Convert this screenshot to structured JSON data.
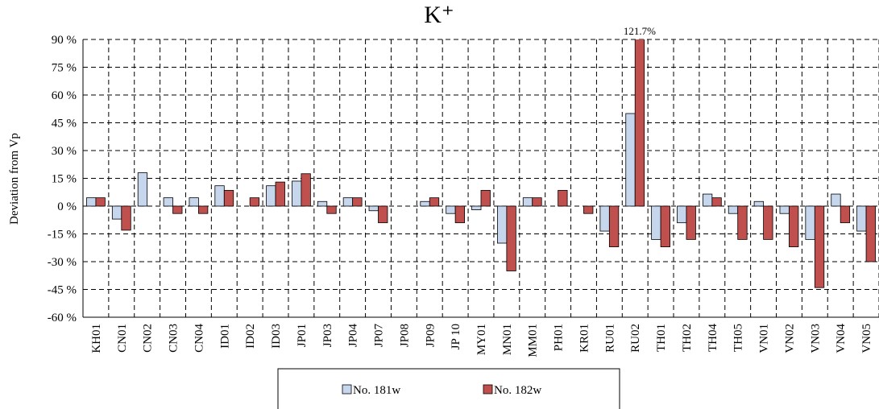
{
  "chart_data": {
    "type": "bar",
    "title": "K⁺",
    "y_label": "Deviation from Vp",
    "categories": [
      "KH01",
      "CN01",
      "CN02",
      "CN03",
      "CN04",
      "ID01",
      "ID02",
      "ID03",
      "JP01",
      "JP03",
      "JP04",
      "JP07",
      "JP08",
      "JP09",
      "JP 10",
      "MY01",
      "MN01",
      "MM01",
      "PH01",
      "KR01",
      "RU01",
      "RU02",
      "TH01",
      "TH02",
      "TH04",
      "TH05",
      "VN01",
      "VN02",
      "VN03",
      "VN04",
      "VN05"
    ],
    "series": [
      {
        "name": "No. 181w",
        "color": "#c6d6ec",
        "values": [
          4.5,
          -7,
          18,
          4.5,
          4.5,
          11,
          null,
          11,
          13.5,
          2.5,
          4.5,
          -2.5,
          null,
          2.5,
          -4,
          -2,
          -20,
          4.5,
          null,
          null,
          -13.5,
          50,
          -18,
          -9,
          6.5,
          -4,
          2.5,
          -4,
          -18,
          6.5,
          -13.5
        ]
      },
      {
        "name": "No. 182w",
        "color": "#c0504d",
        "values": [
          4.5,
          -13,
          null,
          -4,
          -4,
          8.5,
          4.5,
          13,
          17.5,
          -4,
          4.5,
          -9,
          null,
          4.5,
          -9,
          8.5,
          -35,
          4.5,
          8.5,
          -4,
          -22,
          121.7,
          -22,
          -18,
          4.5,
          -18,
          -18,
          -22,
          -44,
          -9,
          -30
        ],
        "value_labels": [
          null,
          null,
          null,
          null,
          null,
          null,
          null,
          null,
          null,
          null,
          null,
          null,
          null,
          null,
          null,
          null,
          null,
          null,
          null,
          null,
          null,
          "121.7%",
          null,
          null,
          null,
          null,
          null,
          null,
          null,
          null,
          null
        ]
      }
    ],
    "ylim": [
      -60,
      90
    ],
    "yticks": [
      {
        "value": -60,
        "label": "-60 %"
      },
      {
        "value": -45,
        "label": "-45 %"
      },
      {
        "value": -30,
        "label": "-30 %"
      },
      {
        "value": -15,
        "label": "-15 %"
      },
      {
        "value": 0,
        "label": "0 %"
      },
      {
        "value": 15,
        "label": "15 %"
      },
      {
        "value": 30,
        "label": "30 %"
      },
      {
        "value": 45,
        "label": "45 %"
      },
      {
        "value": 60,
        "label": "60 %"
      },
      {
        "value": 75,
        "label": "75 %"
      },
      {
        "value": 90,
        "label": "90 %"
      }
    ],
    "grid": true,
    "legend": "bottom"
  }
}
